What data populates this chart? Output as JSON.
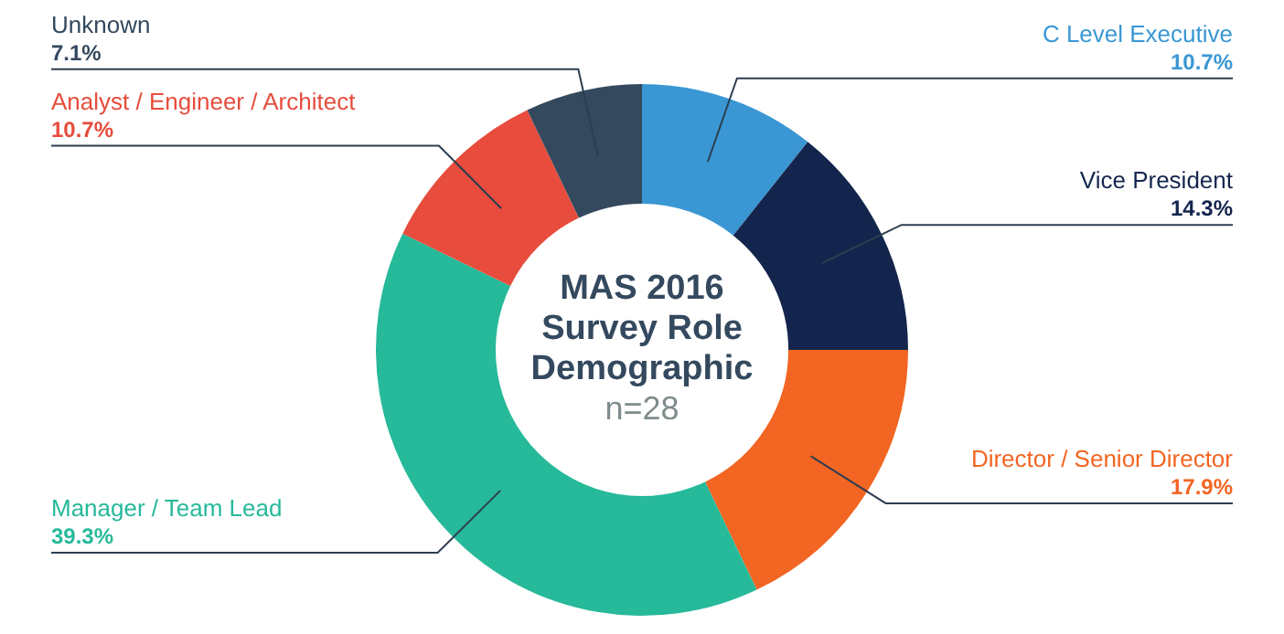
{
  "chart_data": {
    "type": "donut",
    "title": "MAS 2016 Survey Role Demographic",
    "subtitle": "n=28",
    "categories": [
      "C Level Executive",
      "Vice President",
      "Director / Senior Director",
      "Manager / Team Lead",
      "Analyst / Engineer / Architect",
      "Unknown"
    ],
    "values": [
      10.7,
      14.3,
      17.9,
      39.3,
      10.7,
      7.1
    ],
    "colors": [
      "#3a97d4",
      "#14254d",
      "#f26522",
      "#26b99a",
      "#e74c3c",
      "#34495e"
    ],
    "value_labels": [
      "10.7%",
      "14.3%",
      "17.9%",
      "39.3%",
      "10.7%",
      "7.1%"
    ],
    "legend": false
  }
}
